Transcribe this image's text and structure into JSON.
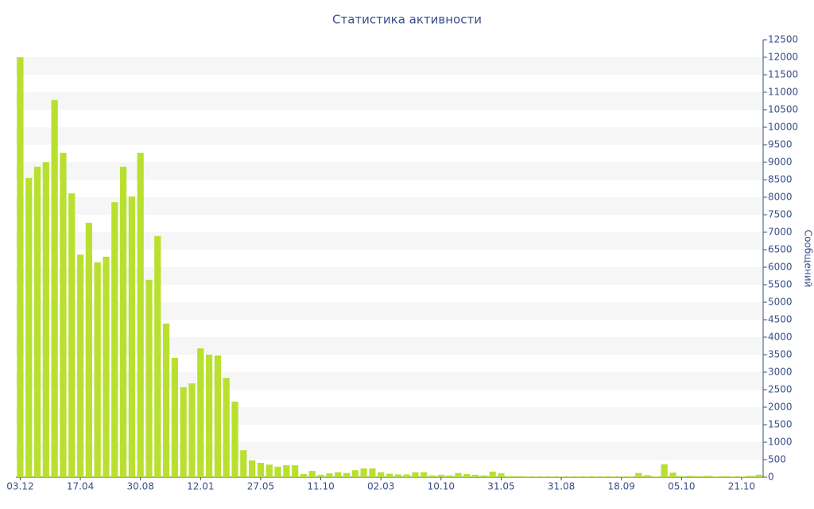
{
  "chart_data": {
    "type": "bar",
    "title": "Статистика активности",
    "y_axis_label": "Сообщений",
    "categories": [
      "03.12",
      null,
      null,
      null,
      null,
      null,
      null,
      "17.04",
      null,
      null,
      null,
      null,
      null,
      null,
      "30.08",
      null,
      null,
      null,
      null,
      null,
      null,
      "12.01",
      null,
      null,
      null,
      null,
      null,
      null,
      "27.05",
      null,
      null,
      null,
      null,
      null,
      null,
      "11.10",
      null,
      null,
      null,
      null,
      null,
      null,
      "02.03",
      null,
      null,
      null,
      null,
      null,
      null,
      "10.10",
      null,
      null,
      null,
      null,
      null,
      null,
      "31.05",
      null,
      null,
      null,
      null,
      null,
      null,
      "31.08",
      null,
      null,
      null,
      null,
      null,
      null,
      "18.09",
      null,
      null,
      null,
      null,
      null,
      null,
      "05.10",
      null,
      null,
      null,
      null,
      null,
      null,
      "21.10",
      null,
      null
    ],
    "values": [
      12000,
      8550,
      8870,
      9000,
      10780,
      9270,
      8110,
      6360,
      7270,
      6140,
      6300,
      7860,
      8870,
      8020,
      9270,
      5640,
      6890,
      4390,
      3410,
      2570,
      2680,
      3680,
      3500,
      3480,
      2840,
      2160,
      770,
      480,
      410,
      360,
      300,
      340,
      340,
      90,
      180,
      70,
      110,
      140,
      120,
      200,
      250,
      250,
      140,
      100,
      80,
      80,
      140,
      140,
      50,
      70,
      50,
      120,
      90,
      70,
      50,
      160,
      110,
      30,
      30,
      20,
      20,
      20,
      20,
      20,
      20,
      20,
      20,
      20,
      20,
      20,
      20,
      20,
      120,
      60,
      20,
      370,
      130,
      30,
      40,
      30,
      40,
      20,
      30,
      20,
      20,
      40,
      70
    ],
    "color": "#b8e02e",
    "ylim": [
      0,
      12500
    ],
    "yticks": [
      0,
      500,
      1000,
      1500,
      2000,
      2500,
      3000,
      3500,
      4000,
      4500,
      5000,
      5500,
      6000,
      6500,
      7000,
      7500,
      8000,
      8500,
      9000,
      9500,
      10000,
      10500,
      11000,
      11500,
      12000,
      12500
    ],
    "grid": true,
    "y_axis_side": "right"
  }
}
